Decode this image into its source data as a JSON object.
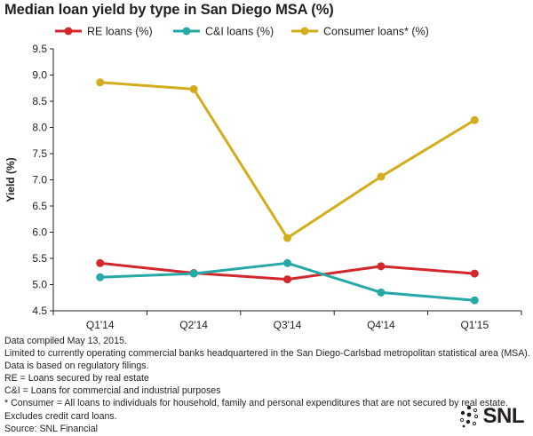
{
  "title": "Median loan yield by type in San Diego MSA (%)",
  "chart_data": {
    "type": "line",
    "title": "Median loan yield by type in San Diego MSA (%)",
    "xlabel": "",
    "ylabel": "Yield (%)",
    "categories": [
      "Q1'14",
      "Q2'14",
      "Q3'14",
      "Q4'14",
      "Q1'15"
    ],
    "ylim": [
      4.5,
      9.5
    ],
    "yticks": [
      "4.5",
      "5.0",
      "5.5",
      "6.0",
      "6.5",
      "7.0",
      "7.5",
      "8.0",
      "8.5",
      "9.0",
      "9.5"
    ],
    "grid": false,
    "legend_position": "top",
    "series": [
      {
        "name": "RE loans (%)",
        "color": "#d3272e",
        "values": [
          5.41,
          5.22,
          5.1,
          5.35,
          5.21
        ]
      },
      {
        "name": "C&I loans (%)",
        "color": "#26a8a6",
        "values": [
          5.14,
          5.21,
          5.41,
          4.85,
          4.7
        ]
      },
      {
        "name": "Consumer loans* (%)",
        "color": "#d3ad1c",
        "values": [
          8.86,
          8.73,
          5.89,
          7.06,
          8.14
        ]
      }
    ]
  },
  "notes": [
    "Data compiled May 13, 2015.",
    "Limited to currently operating commercial banks headquartered in the San Diego-Carlsbad metropolitan statistical area (MSA).",
    "Data is based on regulatory filings.",
    "RE = Loans secured by real estate",
    "C&I = Loans for commercial and industrial purposes",
    "* Consumer = All loans to individuals for household, family and personal expenditures that are not secured by real estate.",
    "Excludes credit card loans.",
    "Source: SNL Financial"
  ],
  "logo": {
    "text": "SNL",
    "icon": "snl-dots-logo"
  }
}
